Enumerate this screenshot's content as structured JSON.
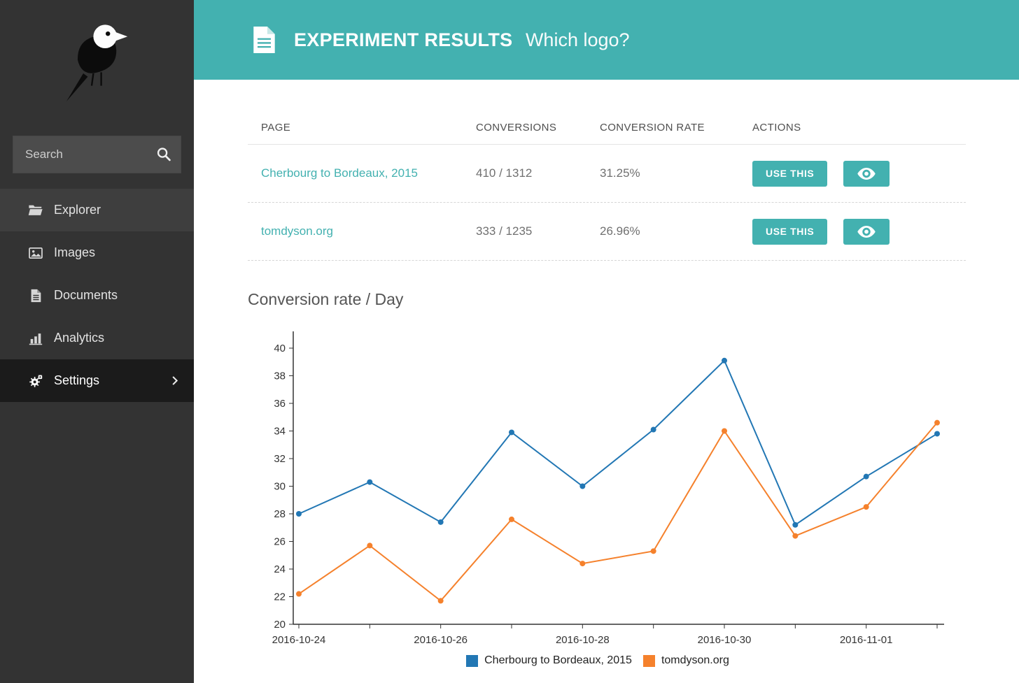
{
  "colors": {
    "accent": "#43b1b0",
    "link": "#43b1b0",
    "sidebar_bg": "#333333",
    "sidebar_active_bg": "#1b1b1b"
  },
  "sidebar": {
    "logo": "wagtail-bird-logo",
    "search": {
      "placeholder": "Search",
      "icon": "search-icon"
    },
    "items": [
      {
        "label": "Explorer",
        "icon": "folder-open-icon"
      },
      {
        "label": "Images",
        "icon": "image-icon"
      },
      {
        "label": "Documents",
        "icon": "document-icon"
      },
      {
        "label": "Analytics",
        "icon": "bar-chart-icon"
      },
      {
        "label": "Settings",
        "icon": "cog-icon",
        "chevron": "chevron-right-icon",
        "active": true
      }
    ]
  },
  "header": {
    "icon": "document-icon",
    "title": "EXPERIMENT RESULTS",
    "subtitle": "Which logo?"
  },
  "results_table": {
    "columns": [
      "PAGE",
      "CONVERSIONS",
      "CONVERSION RATE",
      "ACTIONS"
    ],
    "rows": [
      {
        "page": "Cherbourg to Bordeaux, 2015",
        "conversions": "410 / 1312",
        "conversion_rate": "31.25%",
        "use_this_label": "USE THIS",
        "view_icon": "eye-icon"
      },
      {
        "page": "tomdyson.org",
        "conversions": "333 / 1235",
        "conversion_rate": "26.96%",
        "use_this_label": "USE THIS",
        "view_icon": "eye-icon"
      }
    ]
  },
  "chart_section": {
    "title": "Conversion rate / Day"
  },
  "chart_data": {
    "type": "line",
    "title": "Conversion rate / Day",
    "x": [
      "2016-10-24",
      "2016-10-25",
      "2016-10-26",
      "2016-10-27",
      "2016-10-28",
      "2016-10-29",
      "2016-10-30",
      "2016-10-31",
      "2016-11-01",
      "2016-11-02"
    ],
    "x_tick_labels": [
      "2016-10-24",
      "2016-10-26",
      "2016-10-28",
      "2016-10-30",
      "2016-11-01"
    ],
    "ylim": [
      20,
      40
    ],
    "ytick_step": 2,
    "grid": false,
    "legend_position": "bottom",
    "series": [
      {
        "name": "Cherbourg to Bordeaux, 2015",
        "color": "#2277b4",
        "values": [
          28.0,
          30.3,
          27.4,
          33.9,
          30.0,
          34.1,
          39.1,
          27.2,
          30.7,
          33.8
        ]
      },
      {
        "name": "tomdyson.org",
        "color": "#f5812c",
        "values": [
          22.2,
          25.7,
          21.7,
          27.6,
          24.4,
          25.3,
          34.0,
          26.4,
          28.5,
          34.6
        ]
      }
    ]
  }
}
